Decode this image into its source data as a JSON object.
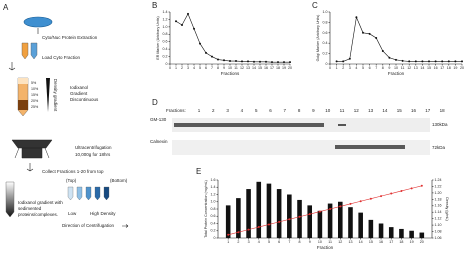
{
  "diagram": {
    "panel": "A",
    "step1": "Cyto/Nuc Protein Extraction",
    "step2": "Load Cyto Fraction",
    "percents": [
      "5%",
      "10%",
      "15%",
      "20%",
      "25%"
    ],
    "gradient_label": "Density gradient",
    "gradient_type": [
      "Iodixanol",
      "Gradient",
      "Discontinuous"
    ],
    "spin": [
      "Ultracentrifugation",
      "10,000g for 18hrs"
    ],
    "collect": "Collect Fractions 1-20 from top",
    "top": "(Top)",
    "bottom": "(Bottom)",
    "result": [
      "Iodixanol gradient with",
      "sedimented",
      "proteins/complexes."
    ],
    "low": "Low",
    "high": "High Density",
    "direction": "Direction of Centrifugation"
  },
  "blot": {
    "panel": "D",
    "fractions_label": "Fractions:",
    "lanes": [
      "1",
      "2",
      "3",
      "4",
      "5",
      "6",
      "7",
      "8",
      "9",
      "10",
      "11",
      "12",
      "13",
      "14",
      "15",
      "16",
      "17",
      "18"
    ],
    "rows": [
      {
        "name": "GM-130",
        "size": "130kDa"
      },
      {
        "name": "Calnexin",
        "size": "72kDa"
      }
    ]
  },
  "chart_data": [
    {
      "type": "line",
      "panel": "B",
      "x_label": "Fractions",
      "y_label": "ER Marker (Arbitrary Units)",
      "x": [
        1,
        2,
        3,
        4,
        5,
        6,
        7,
        8,
        9,
        10,
        11,
        12,
        13,
        14,
        15,
        16,
        17,
        18,
        19,
        20
      ],
      "values": [
        1.15,
        1.05,
        1.35,
        0.95,
        0.55,
        0.3,
        0.2,
        0.12,
        0.1,
        0.08,
        0.08,
        0.07,
        0.07,
        0.06,
        0.06,
        0.06,
        0.05,
        0.05,
        0.05,
        0.05
      ],
      "color": "#111",
      "xlim": [
        0,
        20
      ],
      "xticks": [
        0,
        1,
        2,
        3,
        4,
        5,
        6,
        7,
        8,
        9,
        10,
        11,
        12,
        13,
        14,
        15,
        16,
        17,
        18,
        19,
        20
      ],
      "ylim": [
        0,
        1.4
      ],
      "yticks": [
        0,
        0.2,
        0.4,
        0.6,
        0.8,
        {
          "value": 1,
          "label": "1.0"
        },
        1.2,
        1.4
      ]
    },
    {
      "type": "line",
      "panel": "C",
      "x_label": "Fraction",
      "y_label": "Golgi Marker (Arbitrary Units)",
      "x": [
        1,
        2,
        3,
        4,
        5,
        6,
        7,
        8,
        9,
        10,
        11,
        12,
        13,
        14,
        15,
        16,
        17,
        18,
        19,
        20
      ],
      "values": [
        0.05,
        0.05,
        0.1,
        0.9,
        0.6,
        0.58,
        0.5,
        0.25,
        0.12,
        0.08,
        0.06,
        0.05,
        0.05,
        0.05,
        0.05,
        0.05,
        0.05,
        0.05,
        0.05,
        0.05
      ],
      "color": "#111",
      "xlim": [
        0,
        20
      ],
      "xticks": [
        0,
        1,
        2,
        3,
        4,
        5,
        6,
        7,
        8,
        9,
        10,
        11,
        12,
        13,
        14,
        15,
        16,
        17,
        18,
        19,
        20
      ],
      "ylim": [
        0,
        1
      ],
      "yticks": [
        0,
        0.2,
        0.4,
        0.6,
        0.8,
        {
          "value": 1,
          "label": "1.0"
        }
      ]
    },
    {
      "type": "bar",
      "panel": "E",
      "x_label": "Fraction",
      "y_label": "Total Protein Concentration (mg/mL)",
      "y2_label": "Density (g/mL)",
      "x": [
        1,
        2,
        3,
        4,
        5,
        6,
        7,
        8,
        9,
        10,
        11,
        12,
        13,
        14,
        15,
        16,
        17,
        18,
        19,
        20
      ],
      "series": [
        {
          "type": "bar",
          "color": "#111",
          "values": [
            0.9,
            1.1,
            1.35,
            1.55,
            1.5,
            1.35,
            1.2,
            1.05,
            0.9,
            0.75,
            0.95,
            1.0,
            0.85,
            0.7,
            0.5,
            0.4,
            0.3,
            0.25,
            0.2,
            0.15
          ]
        },
        {
          "type": "line",
          "axis": "y2",
          "color": "#e03030",
          "values": [
            1.07,
            1.078,
            1.086,
            1.094,
            1.102,
            1.11,
            1.118,
            1.126,
            1.134,
            1.142,
            1.15,
            1.158,
            1.166,
            1.174,
            1.182,
            1.19,
            1.198,
            1.206,
            1.214,
            1.222
          ]
        }
      ],
      "xlim": [
        0,
        21
      ],
      "xticks": [
        1,
        2,
        3,
        4,
        5,
        6,
        7,
        8,
        9,
        10,
        11,
        12,
        13,
        14,
        15,
        16,
        17,
        18,
        19,
        20
      ],
      "ylim": [
        0,
        1.6
      ],
      "yticks": [
        0,
        0.2,
        0.4,
        0.6,
        0.8,
        {
          "value": 1,
          "label": "1.0"
        },
        1.2,
        1.4,
        1.6
      ],
      "y2lim": [
        1.06,
        1.24
      ],
      "y2ticks": [
        1.06,
        1.08,
        {
          "value": 1.1,
          "label": "1.10"
        },
        1.12,
        1.14,
        1.16,
        1.18,
        {
          "value": 1.2,
          "label": "1.20"
        },
        1.22,
        1.24
      ]
    }
  ]
}
